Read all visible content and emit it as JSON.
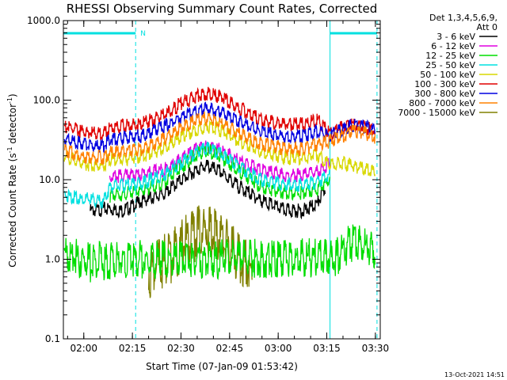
{
  "chart_data": {
    "type": "line",
    "title": "RHESSI Observing Summary Count Rates, Corrected",
    "xlabel": "Start Time (07-Jan-09 01:53:42)",
    "ylabel_main": "Corrected Count Rate (s",
    "ylabel_sup1": "-1",
    "ylabel_mid": " detector",
    "ylabel_sup2": "-1",
    "ylabel_end": ")",
    "yscale": "log",
    "ylim": [
      0.1,
      1000.0
    ],
    "xlim_min": [
      113.7,
      211.5
    ],
    "x_tick_minutes": [
      120,
      135,
      150,
      165,
      180,
      195,
      210
    ],
    "x_tick_labels": [
      "02:00",
      "02:15",
      "02:30",
      "02:45",
      "03:00",
      "03:15",
      "03:30"
    ],
    "y_ticks": [
      0.1,
      1.0,
      10.0,
      100.0,
      1000.0
    ],
    "y_tick_labels": [
      "0.1",
      "1.0",
      "10.0",
      "100.0",
      "1000.0"
    ],
    "legend_header": [
      "Det 1,3,4,5,6,9,",
      "Att 0"
    ],
    "night_intervals_min": [
      [
        113.7,
        136.0
      ],
      [
        196.0,
        210.5
      ]
    ],
    "saa_flag_label": "N",
    "saa_flag_min": 136.0,
    "series": [
      {
        "name": "3 - 6 keV",
        "color": "#000000",
        "min": [
          122,
          128,
          132,
          138,
          145,
          150,
          155,
          158,
          162,
          168,
          175,
          182,
          188,
          192,
          194.5
        ],
        "values": [
          4.5,
          4.8,
          4.5,
          6.0,
          7.5,
          11.0,
          15.0,
          16.5,
          14.0,
          9.0,
          6.0,
          4.6,
          4.5,
          5.5,
          8.5
        ]
      },
      {
        "name": "6 - 12 keV",
        "color": "#e000e0",
        "min": [
          128,
          132,
          138,
          145,
          150,
          155,
          158,
          162,
          168,
          175,
          182,
          188,
          192,
          194.5,
          196
        ],
        "values": [
          12.0,
          12.5,
          13.0,
          15.0,
          20.0,
          27.0,
          30.0,
          26.0,
          19.0,
          14.5,
          12.5,
          12.8,
          14.0,
          16.0,
          18.0
        ]
      },
      {
        "name": "12 - 25 keV",
        "color": "#00dd00",
        "min": [
          128,
          132,
          138,
          145,
          150,
          155,
          158,
          162,
          168,
          175,
          182,
          188,
          192,
          194.5,
          196
        ],
        "values": [
          7.0,
          7.3,
          8.0,
          10.5,
          16.0,
          23.0,
          26.0,
          22.0,
          14.0,
          9.0,
          7.6,
          7.6,
          8.5,
          10.0,
          12.0
        ]
      },
      {
        "name": "25 - 50 keV",
        "color": "#00e0e0",
        "min": [
          114,
          118,
          122,
          126,
          128,
          132,
          138,
          145,
          150,
          155,
          158,
          162,
          168,
          175,
          182,
          188,
          192,
          196
        ],
        "values": [
          7.2,
          6.5,
          6.2,
          5.8,
          9.0,
          9.3,
          10.0,
          13.0,
          18.0,
          25.0,
          28.0,
          24.0,
          16.0,
          11.0,
          9.6,
          9.6,
          10.5,
          13.0
        ]
      },
      {
        "name": "50 - 100 keV",
        "color": "#d8d800",
        "min": [
          114,
          118,
          122,
          126,
          128,
          132,
          138,
          145,
          150,
          155,
          158,
          162,
          168,
          175,
          182,
          188,
          192,
          196,
          200,
          205,
          210
        ],
        "values": [
          22.0,
          19.0,
          17.0,
          16.5,
          20.0,
          20.0,
          22.0,
          28.0,
          38.0,
          48.0,
          52.0,
          47.0,
          34.0,
          25.0,
          21.0,
          21.0,
          23.0,
          17.0,
          18.0,
          16.0,
          14.0
        ]
      },
      {
        "name": "100 - 300 keV",
        "color": "#e00000",
        "min": [
          114,
          118,
          122,
          126,
          128,
          132,
          138,
          145,
          150,
          155,
          158,
          162,
          168,
          175,
          182,
          188,
          192,
          196,
          200,
          203,
          206,
          210
        ],
        "values": [
          52.0,
          46.0,
          43.0,
          42.0,
          50.0,
          52.0,
          56.0,
          72.0,
          100.0,
          128.0,
          135.0,
          122.0,
          88.0,
          62.0,
          55.0,
          55.0,
          62.0,
          42.0,
          50.0,
          55.0,
          52.0,
          45.0
        ]
      },
      {
        "name": "300 - 800 keV",
        "color": "#0000e0",
        "min": [
          114,
          118,
          122,
          126,
          128,
          132,
          138,
          145,
          150,
          155,
          158,
          162,
          168,
          175,
          182,
          188,
          192,
          196,
          200,
          203,
          206,
          210
        ],
        "values": [
          36.0,
          32.0,
          30.0,
          29.0,
          36.0,
          37.0,
          40.0,
          52.0,
          68.0,
          82.0,
          88.0,
          78.0,
          60.0,
          44.0,
          39.0,
          39.0,
          45.0,
          40.0,
          48.0,
          54.0,
          52.0,
          46.0
        ]
      },
      {
        "name": "800 - 7000 keV",
        "color": "#ff8000",
        "min": [
          114,
          118,
          122,
          126,
          128,
          132,
          138,
          145,
          150,
          155,
          158,
          162,
          168,
          175,
          182,
          188,
          192,
          196,
          200,
          203,
          206,
          210
        ],
        "values": [
          26.0,
          23.0,
          21.0,
          21.0,
          24.0,
          25.0,
          27.0,
          36.0,
          50.0,
          62.0,
          66.0,
          58.0,
          42.0,
          31.0,
          27.0,
          27.0,
          31.0,
          34.0,
          40.0,
          46.0,
          44.0,
          38.0
        ]
      },
      {
        "name": "7000 - 15000 keV",
        "color": "#808000",
        "min": [
          140,
          145,
          148,
          150,
          153,
          155,
          158,
          160,
          162,
          164,
          166,
          168,
          172
        ],
        "values": [
          1.05,
          1.4,
          1.8,
          2.2,
          2.8,
          3.2,
          3.6,
          3.0,
          2.8,
          2.4,
          1.9,
          1.5,
          1.1
        ]
      }
    ],
    "night_block_series": [
      {
        "name": "12 - 25 keV",
        "color": "#00dd00",
        "min": [
          114,
          118,
          122,
          127,
          198,
          202,
          206,
          210
        ],
        "values": [
          1.6,
          1.4,
          1.2,
          1.3,
          1.4,
          2.2,
          2.0,
          1.8
        ]
      }
    ],
    "timestamp": "13-Oct-2021 14:51"
  }
}
